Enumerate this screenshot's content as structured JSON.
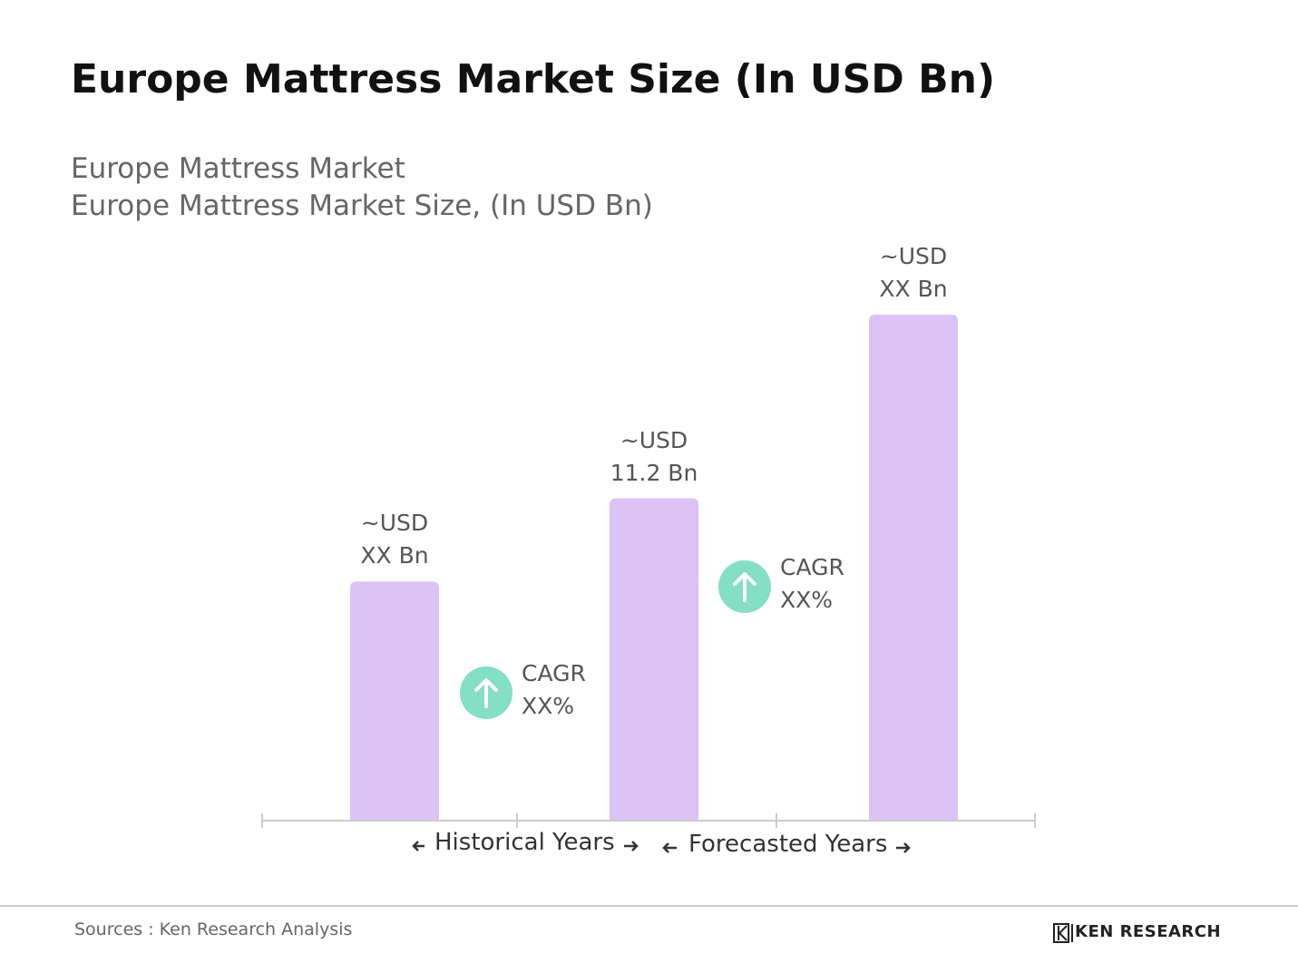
{
  "chart_data": {
    "type": "bar",
    "title": "Europe Mattress Market Size (In USD Bn)",
    "subtitle": [
      "Europe Mattress Market",
      "Europe Mattress Market Size, (In USD Bn)"
    ],
    "categories": [
      null,
      null,
      null
    ],
    "values": [
      8.3,
      11.2,
      17.6
    ],
    "value_labels": [
      "~USD XX Bn",
      "~USD 11.2 Bn",
      "~USD XX Bn"
    ],
    "color": "#dcc3f5",
    "annotations": [
      "CAGR XX%",
      "CAGR XX%"
    ],
    "annotation_color": "#84dfc4",
    "x_groups": [
      "Historical Years",
      "Forecasted Years"
    ],
    "source": "Sources : Ken Research Analysis",
    "logo": "KEN RESEARCH"
  }
}
